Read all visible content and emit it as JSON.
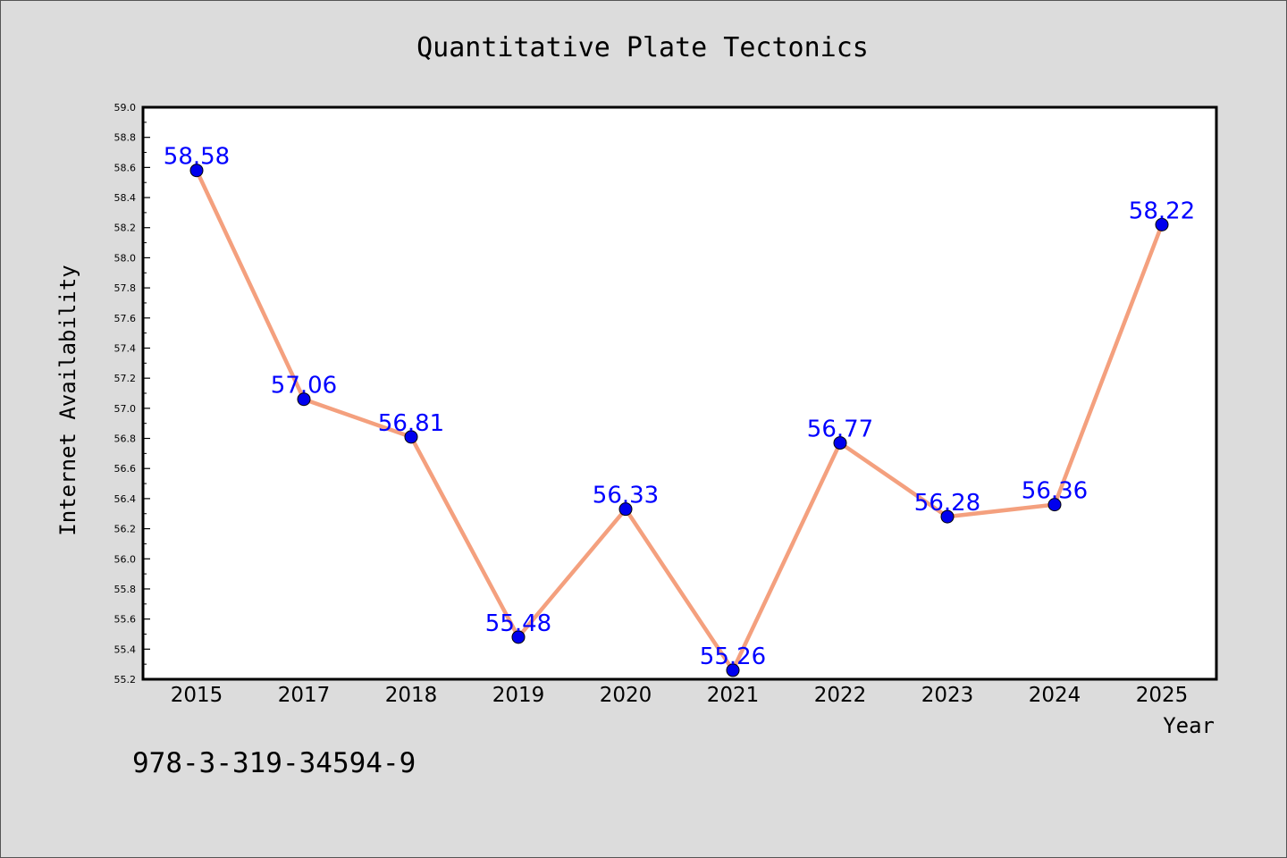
{
  "chart_data": {
    "type": "line",
    "title": "Quantitative Plate Tectonics",
    "xlabel": "Year",
    "ylabel": "Internet Availability",
    "categories": [
      "2015",
      "2017",
      "2018",
      "2019",
      "2020",
      "2021",
      "2022",
      "2023",
      "2024",
      "2025"
    ],
    "series": [
      {
        "values": [
          58.58,
          57.06,
          56.81,
          55.48,
          56.33,
          55.26,
          56.77,
          56.28,
          56.36,
          58.22
        ],
        "labels": [
          "58.58",
          "57.06",
          "56.81",
          "55.48",
          "56.33",
          "55.26",
          "56.77",
          "56.28",
          "56.36",
          "58.22"
        ],
        "line_color": "#f4a07e",
        "marker_color": "#0000ee"
      }
    ],
    "ylim": [
      55.2,
      59.0
    ],
    "yticks": [
      "55.2",
      "55.4",
      "55.6",
      "55.8",
      "56.0",
      "56.2",
      "56.4",
      "56.6",
      "56.8",
      "57.0",
      "57.2",
      "57.4",
      "57.6",
      "57.8",
      "58.0",
      "58.2",
      "58.4",
      "58.6",
      "58.8",
      "59.0"
    ],
    "grid": false,
    "label_color": "#0000ff"
  },
  "footer": {
    "isbn": "978-3-319-34594-9"
  }
}
